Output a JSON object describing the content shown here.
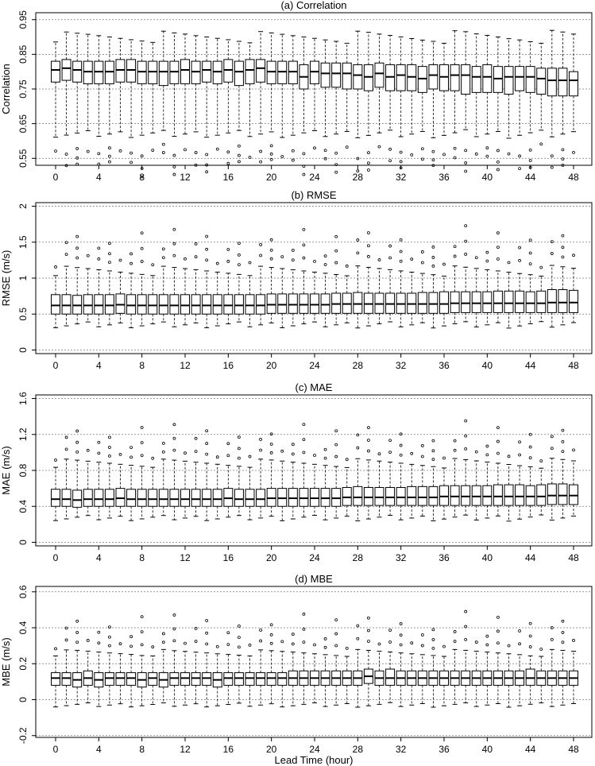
{
  "chart_data": [
    {
      "type": "box",
      "title": "(a) Correlation",
      "ylabel": "Correlation",
      "xlabel": "",
      "ylim": [
        0.53,
        0.97
      ],
      "yticks": [
        0.55,
        0.65,
        0.75,
        0.85,
        0.95
      ],
      "ytick_labels": [
        "0.55",
        "0.65",
        "0.75",
        "0.85",
        "0.95"
      ],
      "grid_y": [
        0.55,
        0.65,
        0.75,
        0.85,
        0.95
      ],
      "whisker_low": 0.62,
      "whisker_high": 0.9,
      "outlier_offsets": [
        -0.05,
        -0.08,
        -0.1
      ],
      "medians": [
        0.805,
        0.81,
        0.805,
        0.8,
        0.8,
        0.8,
        0.805,
        0.805,
        0.8,
        0.8,
        0.8,
        0.8,
        0.805,
        0.8,
        0.805,
        0.8,
        0.805,
        0.8,
        0.805,
        0.81,
        0.8,
        0.8,
        0.8,
        0.785,
        0.8,
        0.795,
        0.795,
        0.795,
        0.79,
        0.785,
        0.795,
        0.785,
        0.79,
        0.785,
        0.78,
        0.79,
        0.785,
        0.79,
        0.79,
        0.785,
        0.785,
        0.78,
        0.785,
        0.785,
        0.785,
        0.78,
        0.775,
        0.775,
        0.775
      ],
      "q1": [
        0.77,
        0.775,
        0.77,
        0.765,
        0.765,
        0.765,
        0.77,
        0.77,
        0.765,
        0.765,
        0.76,
        0.765,
        0.765,
        0.765,
        0.77,
        0.765,
        0.77,
        0.76,
        0.765,
        0.77,
        0.765,
        0.765,
        0.765,
        0.75,
        0.765,
        0.755,
        0.755,
        0.75,
        0.75,
        0.745,
        0.755,
        0.745,
        0.745,
        0.745,
        0.74,
        0.75,
        0.745,
        0.745,
        0.735,
        0.74,
        0.74,
        0.74,
        0.735,
        0.745,
        0.74,
        0.735,
        0.73,
        0.73,
        0.73
      ],
      "q3": [
        0.83,
        0.835,
        0.83,
        0.83,
        0.83,
        0.83,
        0.835,
        0.835,
        0.83,
        0.83,
        0.83,
        0.83,
        0.835,
        0.83,
        0.83,
        0.83,
        0.835,
        0.83,
        0.835,
        0.835,
        0.83,
        0.83,
        0.83,
        0.82,
        0.83,
        0.825,
        0.825,
        0.825,
        0.82,
        0.82,
        0.825,
        0.82,
        0.82,
        0.82,
        0.815,
        0.82,
        0.82,
        0.82,
        0.82,
        0.815,
        0.82,
        0.815,
        0.815,
        0.815,
        0.815,
        0.81,
        0.81,
        0.81,
        0.8
      ]
    },
    {
      "type": "box",
      "title": "(b) RMSE",
      "ylabel": "RMSE (m/s)",
      "xlabel": "",
      "ylim": [
        -0.05,
        2.05
      ],
      "yticks": [
        0,
        0.5,
        1,
        1.5,
        2
      ],
      "ytick_labels": [
        "0",
        "0.5",
        "1",
        "1.5",
        "2"
      ],
      "grid_y": [
        0,
        0.5,
        1,
        1.5,
        2
      ],
      "whisker_low": 0.35,
      "whisker_high": 1.1,
      "outlier_offsets": [
        0.15,
        0.3,
        0.48
      ],
      "medians": [
        0.62,
        0.62,
        0.62,
        0.62,
        0.62,
        0.62,
        0.63,
        0.62,
        0.62,
        0.62,
        0.62,
        0.62,
        0.62,
        0.62,
        0.62,
        0.62,
        0.62,
        0.62,
        0.62,
        0.62,
        0.63,
        0.63,
        0.63,
        0.63,
        0.63,
        0.63,
        0.64,
        0.64,
        0.64,
        0.64,
        0.64,
        0.64,
        0.64,
        0.64,
        0.64,
        0.64,
        0.64,
        0.65,
        0.65,
        0.65,
        0.65,
        0.65,
        0.65,
        0.65,
        0.65,
        0.65,
        0.66,
        0.66,
        0.66
      ],
      "q1": [
        0.5,
        0.5,
        0.5,
        0.5,
        0.5,
        0.5,
        0.51,
        0.5,
        0.5,
        0.5,
        0.5,
        0.5,
        0.5,
        0.5,
        0.5,
        0.5,
        0.5,
        0.5,
        0.5,
        0.5,
        0.51,
        0.51,
        0.51,
        0.51,
        0.51,
        0.51,
        0.51,
        0.51,
        0.51,
        0.51,
        0.51,
        0.51,
        0.51,
        0.51,
        0.51,
        0.51,
        0.51,
        0.52,
        0.52,
        0.52,
        0.52,
        0.52,
        0.52,
        0.52,
        0.52,
        0.52,
        0.52,
        0.52,
        0.52
      ],
      "q3": [
        0.77,
        0.77,
        0.76,
        0.77,
        0.77,
        0.77,
        0.78,
        0.77,
        0.77,
        0.77,
        0.77,
        0.77,
        0.77,
        0.77,
        0.77,
        0.77,
        0.77,
        0.77,
        0.77,
        0.77,
        0.78,
        0.78,
        0.78,
        0.78,
        0.78,
        0.78,
        0.79,
        0.79,
        0.8,
        0.79,
        0.79,
        0.79,
        0.79,
        0.79,
        0.8,
        0.8,
        0.81,
        0.81,
        0.81,
        0.81,
        0.81,
        0.82,
        0.82,
        0.82,
        0.81,
        0.82,
        0.84,
        0.84,
        0.83
      ]
    },
    {
      "type": "box",
      "title": "(c) MAE",
      "ylabel": "MAE (m/s)",
      "xlabel": "",
      "ylim": [
        -0.04,
        1.64
      ],
      "yticks": [
        0,
        0.4,
        0.8,
        1.2,
        1.6
      ],
      "ytick_labels": [
        "0",
        "0.4",
        "0.8",
        "1.2",
        "1.6"
      ],
      "grid_y": [
        0,
        0.4,
        0.8,
        1.2,
        1.6
      ],
      "whisker_low": 0.27,
      "whisker_high": 0.88,
      "outlier_offsets": [
        0.1,
        0.22,
        0.36
      ],
      "medians": [
        0.48,
        0.48,
        0.47,
        0.48,
        0.48,
        0.48,
        0.49,
        0.48,
        0.48,
        0.48,
        0.48,
        0.48,
        0.48,
        0.48,
        0.48,
        0.48,
        0.49,
        0.48,
        0.48,
        0.48,
        0.49,
        0.49,
        0.49,
        0.49,
        0.49,
        0.49,
        0.49,
        0.5,
        0.5,
        0.5,
        0.5,
        0.5,
        0.5,
        0.5,
        0.5,
        0.5,
        0.51,
        0.51,
        0.51,
        0.51,
        0.51,
        0.51,
        0.51,
        0.51,
        0.51,
        0.51,
        0.52,
        0.52,
        0.52
      ],
      "q1": [
        0.4,
        0.4,
        0.39,
        0.4,
        0.4,
        0.4,
        0.4,
        0.4,
        0.4,
        0.4,
        0.4,
        0.4,
        0.4,
        0.4,
        0.4,
        0.4,
        0.4,
        0.4,
        0.4,
        0.4,
        0.4,
        0.4,
        0.4,
        0.4,
        0.4,
        0.4,
        0.4,
        0.41,
        0.41,
        0.41,
        0.41,
        0.41,
        0.41,
        0.41,
        0.41,
        0.41,
        0.41,
        0.41,
        0.41,
        0.41,
        0.41,
        0.41,
        0.41,
        0.41,
        0.41,
        0.41,
        0.42,
        0.42,
        0.42
      ],
      "q3": [
        0.59,
        0.59,
        0.58,
        0.59,
        0.59,
        0.59,
        0.6,
        0.59,
        0.59,
        0.59,
        0.59,
        0.59,
        0.59,
        0.59,
        0.59,
        0.59,
        0.6,
        0.59,
        0.59,
        0.59,
        0.6,
        0.6,
        0.6,
        0.6,
        0.6,
        0.6,
        0.6,
        0.61,
        0.62,
        0.61,
        0.61,
        0.61,
        0.61,
        0.62,
        0.62,
        0.62,
        0.63,
        0.63,
        0.63,
        0.63,
        0.63,
        0.64,
        0.64,
        0.64,
        0.63,
        0.64,
        0.65,
        0.65,
        0.64
      ]
    },
    {
      "type": "box",
      "title": "(d) MBE",
      "ylabel": "MBE (m/s)",
      "xlabel": "Lead Time (hour)",
      "ylim": [
        -0.21,
        0.63
      ],
      "yticks": [
        -0.2,
        0,
        0.2,
        0.4,
        0.6
      ],
      "ytick_labels": [
        "-0.2",
        "0",
        "0.2",
        "0.4",
        "0.6"
      ],
      "grid_y": [
        -0.2,
        0,
        0.2,
        0.4,
        0.6
      ],
      "whisker_low": -0.03,
      "whisker_high": 0.26,
      "outlier_offsets": [
        0.05,
        0.11,
        0.18
      ],
      "medians": [
        0.12,
        0.12,
        0.11,
        0.12,
        0.11,
        0.12,
        0.12,
        0.12,
        0.11,
        0.12,
        0.11,
        0.12,
        0.12,
        0.12,
        0.12,
        0.11,
        0.12,
        0.12,
        0.12,
        0.12,
        0.12,
        0.12,
        0.12,
        0.12,
        0.12,
        0.12,
        0.12,
        0.12,
        0.12,
        0.13,
        0.12,
        0.12,
        0.12,
        0.12,
        0.12,
        0.12,
        0.12,
        0.12,
        0.12,
        0.12,
        0.12,
        0.12,
        0.12,
        0.12,
        0.12,
        0.12,
        0.12,
        0.12,
        0.12
      ],
      "q1": [
        0.08,
        0.08,
        0.07,
        0.08,
        0.07,
        0.08,
        0.08,
        0.08,
        0.07,
        0.08,
        0.07,
        0.08,
        0.08,
        0.08,
        0.08,
        0.07,
        0.08,
        0.08,
        0.08,
        0.08,
        0.08,
        0.08,
        0.08,
        0.08,
        0.08,
        0.08,
        0.08,
        0.08,
        0.08,
        0.09,
        0.08,
        0.08,
        0.08,
        0.08,
        0.08,
        0.08,
        0.08,
        0.08,
        0.08,
        0.08,
        0.08,
        0.08,
        0.08,
        0.08,
        0.08,
        0.08,
        0.08,
        0.08,
        0.08
      ],
      "q3": [
        0.15,
        0.15,
        0.15,
        0.16,
        0.15,
        0.15,
        0.15,
        0.15,
        0.15,
        0.15,
        0.15,
        0.15,
        0.15,
        0.15,
        0.15,
        0.15,
        0.15,
        0.15,
        0.15,
        0.15,
        0.15,
        0.15,
        0.16,
        0.16,
        0.16,
        0.16,
        0.16,
        0.16,
        0.16,
        0.17,
        0.16,
        0.17,
        0.16,
        0.16,
        0.16,
        0.16,
        0.16,
        0.16,
        0.16,
        0.16,
        0.16,
        0.16,
        0.16,
        0.16,
        0.17,
        0.16,
        0.16,
        0.16,
        0.16
      ]
    }
  ],
  "x": {
    "values": [
      0,
      1,
      2,
      3,
      4,
      5,
      6,
      7,
      8,
      9,
      10,
      11,
      12,
      13,
      14,
      15,
      16,
      17,
      18,
      19,
      20,
      21,
      22,
      23,
      24,
      25,
      26,
      27,
      28,
      29,
      30,
      31,
      32,
      33,
      34,
      35,
      36,
      37,
      38,
      39,
      40,
      41,
      42,
      43,
      44,
      45,
      46,
      47,
      48
    ],
    "tick_values": [
      0,
      4,
      8,
      12,
      16,
      20,
      24,
      28,
      32,
      36,
      40,
      44,
      48
    ],
    "tick_labels": [
      "0",
      "4",
      "8",
      "12",
      "16",
      "20",
      "24",
      "28",
      "32",
      "36",
      "40",
      "44",
      "48"
    ],
    "label": "Lead Time (hour)"
  },
  "colors": {
    "box_fill": "#ffffff",
    "stroke": "#000000",
    "grid": "#777777"
  }
}
